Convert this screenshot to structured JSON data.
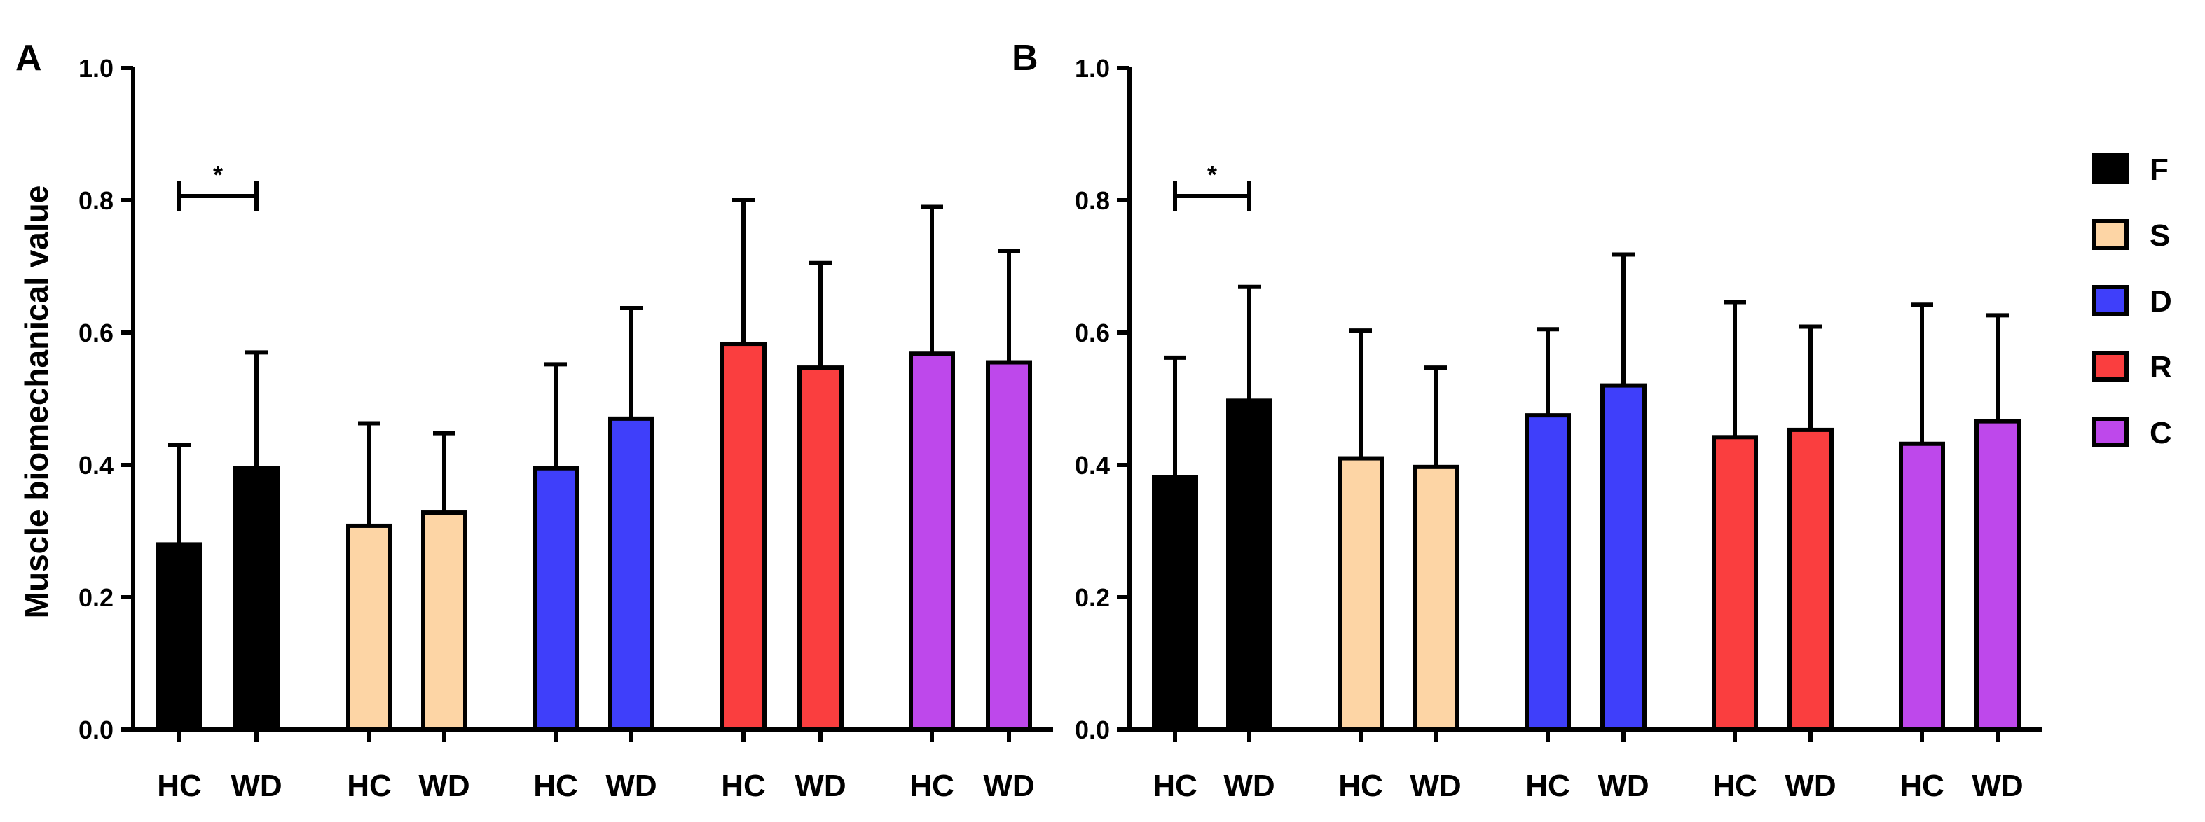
{
  "chart_data": {
    "type": "bar",
    "ylabel": "Muscle biomechanical value",
    "ylim": [
      0,
      1.0
    ],
    "yticks": [
      0.0,
      0.2,
      0.4,
      0.6,
      0.8,
      1.0
    ],
    "ytick_labels": [
      "0.0",
      "0.2",
      "0.4",
      "0.6",
      "0.8",
      "1.0"
    ],
    "groups": [
      "F",
      "S",
      "D",
      "R",
      "C"
    ],
    "group_colors": [
      "#000000",
      "#FDD5A5",
      "#3F3FFA",
      "#FA3E3F",
      "#BE48EB"
    ],
    "conditions": [
      "HC",
      "WD"
    ],
    "legend": {
      "position": "right",
      "entries": [
        {
          "label": "F",
          "color": "#000000"
        },
        {
          "label": "S",
          "color": "#FDD5A5"
        },
        {
          "label": "D",
          "color": "#3F3FFA"
        },
        {
          "label": "R",
          "color": "#FA3E3F"
        },
        {
          "label": "C",
          "color": "#BE48EB"
        }
      ]
    },
    "panels": [
      {
        "label": "A",
        "series": [
          {
            "group": "F",
            "values": [
              0.28,
              0.395
            ],
            "errors": [
              0.15,
              0.175
            ]
          },
          {
            "group": "S",
            "values": [
              0.308,
              0.328
            ],
            "errors": [
              0.155,
              0.12
            ]
          },
          {
            "group": "D",
            "values": [
              0.395,
              0.47
            ],
            "errors": [
              0.157,
              0.167
            ]
          },
          {
            "group": "R",
            "values": [
              0.583,
              0.547
            ],
            "errors": [
              0.217,
              0.158
            ]
          },
          {
            "group": "C",
            "values": [
              0.568,
              0.555
            ],
            "errors": [
              0.222,
              0.168
            ]
          }
        ],
        "significance": {
          "group": "F",
          "text": "*",
          "y": 0.8
        }
      },
      {
        "label": "B",
        "series": [
          {
            "group": "F",
            "values": [
              0.382,
              0.497
            ],
            "errors": [
              0.18,
              0.172
            ]
          },
          {
            "group": "S",
            "values": [
              0.41,
              0.397
            ],
            "errors": [
              0.193,
              0.15
            ]
          },
          {
            "group": "D",
            "values": [
              0.475,
              0.52
            ],
            "errors": [
              0.13,
              0.198
            ]
          },
          {
            "group": "R",
            "values": [
              0.442,
              0.453
            ],
            "errors": [
              0.204,
              0.156
            ]
          },
          {
            "group": "C",
            "values": [
              0.432,
              0.466
            ],
            "errors": [
              0.21,
              0.16
            ]
          }
        ],
        "significance": {
          "group": "F",
          "text": "*",
          "y": 0.8
        }
      }
    ]
  }
}
